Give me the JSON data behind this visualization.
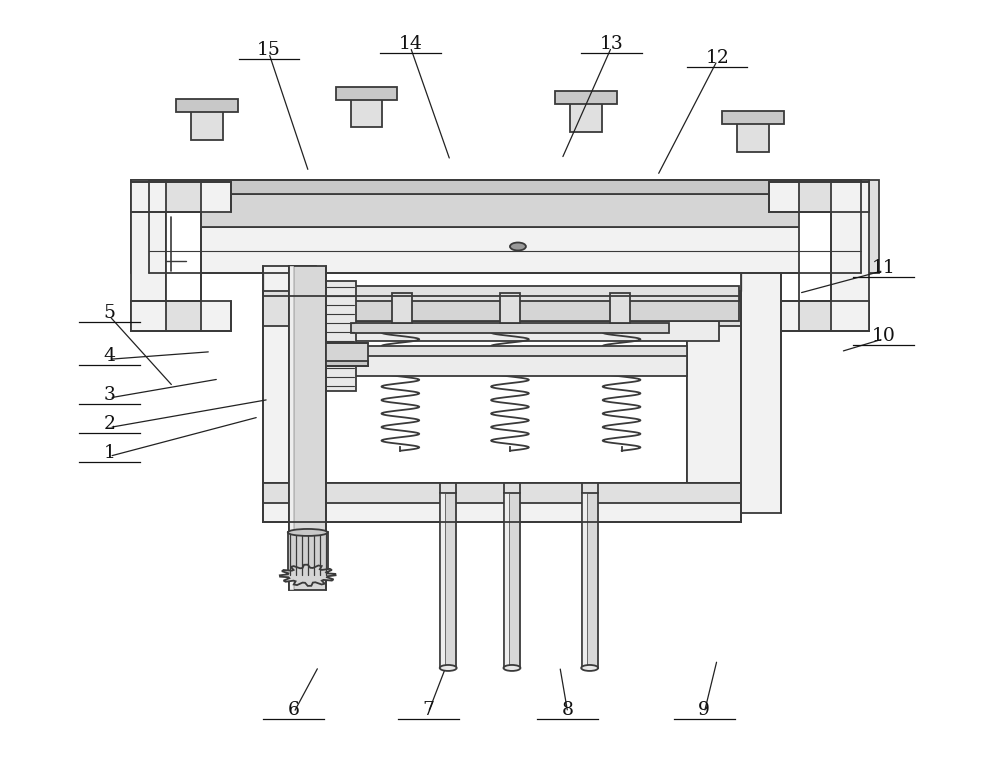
{
  "background_color": "#ffffff",
  "line_color": "#3a3a3a",
  "line_width": 1.3,
  "fig_width": 10.0,
  "fig_height": 7.61,
  "label_positions": {
    "1": [
      0.108,
      0.6,
      0.258,
      0.548
    ],
    "2": [
      0.108,
      0.562,
      0.268,
      0.525
    ],
    "3": [
      0.108,
      0.523,
      0.218,
      0.498
    ],
    "4": [
      0.108,
      0.472,
      0.21,
      0.462
    ],
    "5": [
      0.108,
      0.415,
      0.172,
      0.508
    ],
    "6": [
      0.293,
      0.938,
      0.318,
      0.877
    ],
    "7": [
      0.428,
      0.938,
      0.445,
      0.88
    ],
    "8": [
      0.568,
      0.938,
      0.56,
      0.877
    ],
    "9": [
      0.705,
      0.938,
      0.718,
      0.868
    ],
    "10": [
      0.885,
      0.445,
      0.842,
      0.462
    ],
    "11": [
      0.885,
      0.355,
      0.8,
      0.385
    ],
    "12": [
      0.718,
      0.078,
      0.658,
      0.23
    ],
    "13": [
      0.612,
      0.06,
      0.562,
      0.208
    ],
    "14": [
      0.41,
      0.06,
      0.45,
      0.21
    ],
    "15": [
      0.268,
      0.068,
      0.308,
      0.225
    ]
  }
}
